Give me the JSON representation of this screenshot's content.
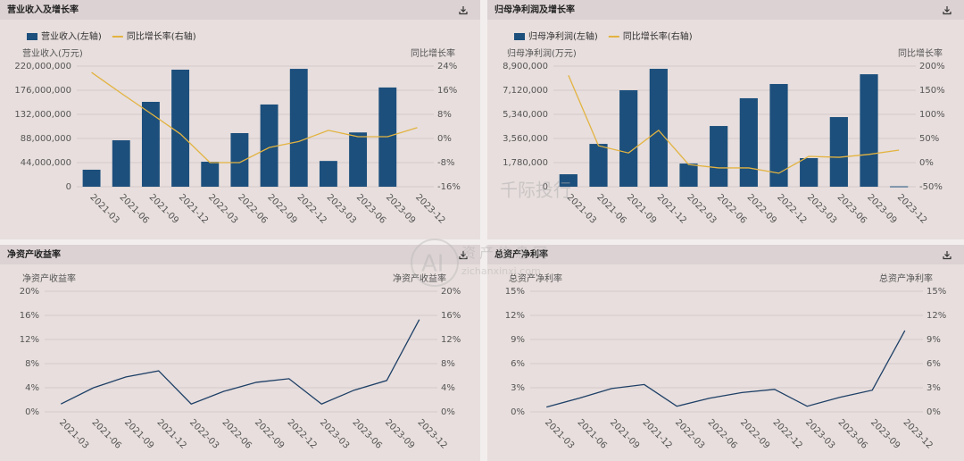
{
  "watermark": [
    "千际投行",
    "AI",
    "资产信息网",
    "zichanxinxi.com"
  ],
  "chart_data": [
    {
      "type": "bar",
      "title": "营业收入及增长率",
      "y_label": "营业收入(万元)",
      "y2_label": "同比增长率",
      "categories": [
        "2021-03",
        "2021-06",
        "2021-09",
        "2021-12",
        "2022-03",
        "2022-06",
        "2022-09",
        "2022-12",
        "2023-03",
        "2023-06",
        "2023-09",
        "2023-12"
      ],
      "series": [
        {
          "name": "营业收入(左轴)",
          "type": "bar",
          "color": "#1c4f7c",
          "values": [
            31000000,
            84700000,
            154800000,
            213500000,
            45600000,
            97800000,
            150000000,
            215000000,
            47000000,
            99000000,
            181000000,
            null
          ]
        },
        {
          "name": "同比增长率(右轴)",
          "type": "line",
          "axis": "y2",
          "color": "#e3b341",
          "values": [
            21.9,
            15,
            8.3,
            1.5,
            -8,
            -8,
            -3,
            -1,
            2.7,
            0.6,
            0.6,
            3.6
          ]
        }
      ],
      "ylim": [
        0,
        220000000
      ],
      "yticks": [
        0,
        {
          "value": 44000000,
          "label": "44,000,000"
        },
        {
          "value": 88000000,
          "label": "88,000,000"
        },
        {
          "value": 132000000,
          "label": "132,000,000"
        },
        {
          "value": 176000000,
          "label": "176,000,000"
        },
        {
          "value": 220000000,
          "label": "220,000,000"
        }
      ],
      "y2lim": [
        -16,
        24
      ],
      "y2ticks": [
        {
          "value": -16,
          "label": "-16%"
        },
        {
          "value": -8,
          "label": "-8%"
        },
        {
          "value": 0,
          "label": "0%"
        },
        {
          "value": 8,
          "label": "8%"
        },
        {
          "value": 16,
          "label": "16%"
        },
        {
          "value": 24,
          "label": "24%"
        }
      ],
      "grid": true,
      "legend": "top-left"
    },
    {
      "type": "bar",
      "title": "归母净利润及增长率",
      "y_label": "归母净利润(万元)",
      "y2_label": "同比增长率",
      "categories": [
        "2021-03",
        "2021-06",
        "2021-09",
        "2021-12",
        "2022-03",
        "2022-06",
        "2022-09",
        "2022-12",
        "2023-03",
        "2023-06",
        "2023-09",
        "2023-12"
      ],
      "series": [
        {
          "name": "归母净利润(左轴)",
          "type": "bar",
          "color": "#1c4f7c",
          "values": [
            920000,
            3160000,
            7120000,
            8700000,
            1710000,
            4480000,
            6530000,
            7580000,
            2110000,
            5140000,
            8300000,
            30000
          ]
        },
        {
          "name": "同比增长率(右轴)",
          "type": "line",
          "axis": "y2",
          "color": "#e3b341",
          "values": [
            181,
            35,
            20,
            67,
            -4,
            -11,
            -11,
            -22,
            13,
            11,
            17,
            26
          ]
        }
      ],
      "ylim": [
        0,
        8900000
      ],
      "yticks": [
        0,
        {
          "value": 1780000,
          "label": "1,780,000"
        },
        {
          "value": 3560000,
          "label": "3,560,000"
        },
        {
          "value": 5340000,
          "label": "5,340,000"
        },
        {
          "value": 7120000,
          "label": "7,120,000"
        },
        {
          "value": 8900000,
          "label": "8,900,000"
        }
      ],
      "y2lim": [
        -50,
        200
      ],
      "y2ticks": [
        {
          "value": -50,
          "label": "-50%"
        },
        {
          "value": 0,
          "label": "0%"
        },
        {
          "value": 50,
          "label": "50%"
        },
        {
          "value": 100,
          "label": "100%"
        },
        {
          "value": 150,
          "label": "150%"
        },
        {
          "value": 200,
          "label": "200%"
        }
      ],
      "grid": true,
      "legend": "top-left"
    },
    {
      "type": "line",
      "title": "净资产收益率",
      "y_label": "净资产收益率",
      "y2_label": "净资产收益率",
      "categories": [
        "2021-03",
        "2021-06",
        "2021-09",
        "2021-12",
        "2022-03",
        "2022-06",
        "2022-09",
        "2022-12",
        "2023-03",
        "2023-06",
        "2023-09",
        "2023-12"
      ],
      "series": [
        {
          "type": "line",
          "color": "#1e3f66",
          "values": [
            1.3,
            4.0,
            5.8,
            6.8,
            1.3,
            3.4,
            4.9,
            5.5,
            1.3,
            3.6,
            5.2,
            15.3
          ]
        }
      ],
      "ylim": [
        0,
        20
      ],
      "yticks": [
        {
          "value": 0,
          "label": "0%"
        },
        {
          "value": 4,
          "label": "4%"
        },
        {
          "value": 8,
          "label": "8%"
        },
        {
          "value": 12,
          "label": "12%"
        },
        {
          "value": 16,
          "label": "16%"
        },
        {
          "value": 20,
          "label": "20%"
        }
      ],
      "y2lim": [
        0,
        20
      ],
      "y2ticks": [
        {
          "value": 0,
          "label": "0%"
        },
        {
          "value": 4,
          "label": "4%"
        },
        {
          "value": 8,
          "label": "8%"
        },
        {
          "value": 12,
          "label": "12%"
        },
        {
          "value": 16,
          "label": "16%"
        },
        {
          "value": 20,
          "label": "20%"
        }
      ],
      "grid": true
    },
    {
      "type": "line",
      "title": "总资产净利率",
      "y_label": "总资产净利率",
      "y2_label": "总资产净利率",
      "categories": [
        "2021-03",
        "2021-06",
        "2021-09",
        "2021-12",
        "2022-03",
        "2022-06",
        "2022-09",
        "2022-12",
        "2023-03",
        "2023-06",
        "2023-09",
        "2023-12"
      ],
      "series": [
        {
          "type": "line",
          "color": "#1e3f66",
          "values": [
            0.6,
            1.7,
            2.9,
            3.4,
            0.7,
            1.7,
            2.4,
            2.8,
            0.7,
            1.8,
            2.7,
            10.1
          ]
        }
      ],
      "ylim": [
        0,
        15
      ],
      "yticks": [
        {
          "value": 0,
          "label": "0%"
        },
        {
          "value": 3,
          "label": "3%"
        },
        {
          "value": 6,
          "label": "6%"
        },
        {
          "value": 9,
          "label": "9%"
        },
        {
          "value": 12,
          "label": "12%"
        },
        {
          "value": 15,
          "label": "15%"
        }
      ],
      "y2lim": [
        0,
        15
      ],
      "y2ticks": [
        {
          "value": 0,
          "label": "0%"
        },
        {
          "value": 3,
          "label": "3%"
        },
        {
          "value": 6,
          "label": "6%"
        },
        {
          "value": 9,
          "label": "9%"
        },
        {
          "value": 12,
          "label": "12%"
        },
        {
          "value": 15,
          "label": "15%"
        }
      ],
      "grid": true
    }
  ]
}
